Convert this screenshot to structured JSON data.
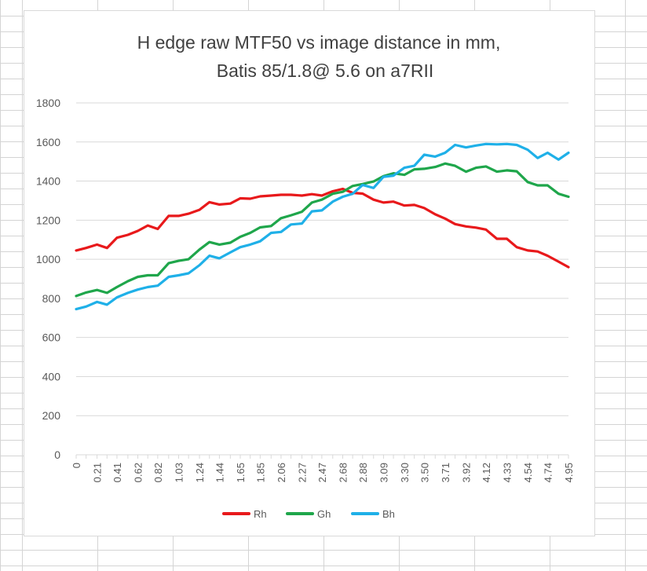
{
  "chart_data": {
    "type": "line",
    "title": [
      "H edge raw MTF50 vs image distance in mm,",
      "Batis 85/1.8@ 5.6 on a7RII"
    ],
    "xlabel": "",
    "ylabel": "",
    "ylim": [
      0,
      1800
    ],
    "yticks": [
      0,
      200,
      400,
      600,
      800,
      1000,
      1200,
      1400,
      1600,
      1800
    ],
    "x": [
      0,
      0.1,
      0.21,
      0.31,
      0.41,
      0.52,
      0.62,
      0.72,
      0.82,
      0.93,
      1.03,
      1.13,
      1.24,
      1.34,
      1.44,
      1.55,
      1.65,
      1.75,
      1.85,
      1.96,
      2.06,
      2.16,
      2.27,
      2.37,
      2.47,
      2.58,
      2.68,
      2.78,
      2.88,
      2.99,
      3.09,
      3.19,
      3.3,
      3.4,
      3.5,
      3.61,
      3.71,
      3.81,
      3.92,
      4.02,
      4.12,
      4.23,
      4.33,
      4.43,
      4.54,
      4.64,
      4.74,
      4.85,
      4.95
    ],
    "xtick_labels": [
      "0",
      "0.21",
      "0.41",
      "0.62",
      "0.82",
      "1.03",
      "1.24",
      "1.44",
      "1.65",
      "1.85",
      "2.06",
      "2.27",
      "2.47",
      "2.68",
      "2.88",
      "3.09",
      "3.30",
      "3.50",
      "3.71",
      "3.92",
      "4.12",
      "4.33",
      "4.54",
      "4.74",
      "4.95"
    ],
    "grid": "horizontal",
    "legend_position": "bottom",
    "series": [
      {
        "name": "Rh",
        "color": "#e8191b",
        "values": [
          1045,
          1058,
          1075,
          1058,
          1110,
          1125,
          1145,
          1173,
          1155,
          1222,
          1222,
          1233,
          1253,
          1292,
          1280,
          1285,
          1312,
          1310,
          1322,
          1326,
          1330,
          1330,
          1326,
          1333,
          1326,
          1348,
          1360,
          1340,
          1336,
          1305,
          1290,
          1295,
          1275,
          1278,
          1262,
          1230,
          1208,
          1180,
          1168,
          1162,
          1152,
          1105,
          1105,
          1062,
          1045,
          1040,
          1018,
          988,
          960
        ]
      },
      {
        "name": "Gh",
        "color": "#1fa64b",
        "values": [
          812,
          830,
          843,
          828,
          858,
          888,
          910,
          918,
          918,
          980,
          992,
          1000,
          1050,
          1088,
          1075,
          1085,
          1115,
          1135,
          1163,
          1170,
          1210,
          1225,
          1243,
          1290,
          1305,
          1335,
          1345,
          1375,
          1385,
          1398,
          1425,
          1440,
          1432,
          1460,
          1463,
          1472,
          1490,
          1478,
          1448,
          1468,
          1475,
          1448,
          1455,
          1450,
          1395,
          1378,
          1378,
          1335,
          1320
        ]
      },
      {
        "name": "Bh",
        "color": "#1fb0e8",
        "values": [
          745,
          758,
          782,
          768,
          805,
          828,
          845,
          858,
          865,
          910,
          918,
          928,
          970,
          1018,
          1005,
          1035,
          1062,
          1075,
          1092,
          1135,
          1140,
          1178,
          1183,
          1245,
          1250,
          1295,
          1320,
          1335,
          1380,
          1365,
          1422,
          1428,
          1468,
          1478,
          1535,
          1525,
          1545,
          1585,
          1572,
          1582,
          1590,
          1588,
          1590,
          1585,
          1560,
          1518,
          1545,
          1510,
          1545
        ]
      }
    ]
  }
}
